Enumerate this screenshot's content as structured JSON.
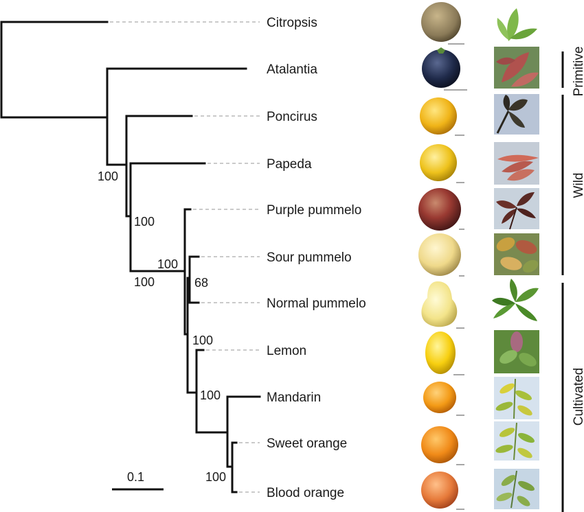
{
  "taxa": [
    {
      "name": "Citropsis"
    },
    {
      "name": "Atalantia"
    },
    {
      "name": "Poncirus"
    },
    {
      "name": "Papeda"
    },
    {
      "name": "Purple pummelo"
    },
    {
      "name": "Sour pummelo"
    },
    {
      "name": "Normal pummelo"
    },
    {
      "name": "Lemon"
    },
    {
      "name": "Mandarin"
    },
    {
      "name": "Sweet orange"
    },
    {
      "name": "Blood orange"
    }
  ],
  "bootstrap": [
    "100",
    "100",
    "100",
    "100",
    "68",
    "100",
    "100",
    "100"
  ],
  "scale": {
    "label": "0.1"
  },
  "groups": [
    "Primitive",
    "Wild",
    "Cultivated"
  ],
  "colors": {
    "citropsis_fruit": "#8a7a58",
    "atalantia_fruit": "#1f2a4a",
    "poncirus_fruit": "#f0b418",
    "papeda_fruit": "#eec21c",
    "purple_pummelo_fruit": "#9a3a32",
    "sour_pummelo_fruit": "#efd98a",
    "normal_pummelo_fruit": "#f3e48a",
    "lemon_fruit": "#f7cf10",
    "mandarin_fruit": "#f39a16",
    "sweet_orange_fruit": "#f08a18",
    "blood_orange_fruit": "#e67a3a"
  }
}
